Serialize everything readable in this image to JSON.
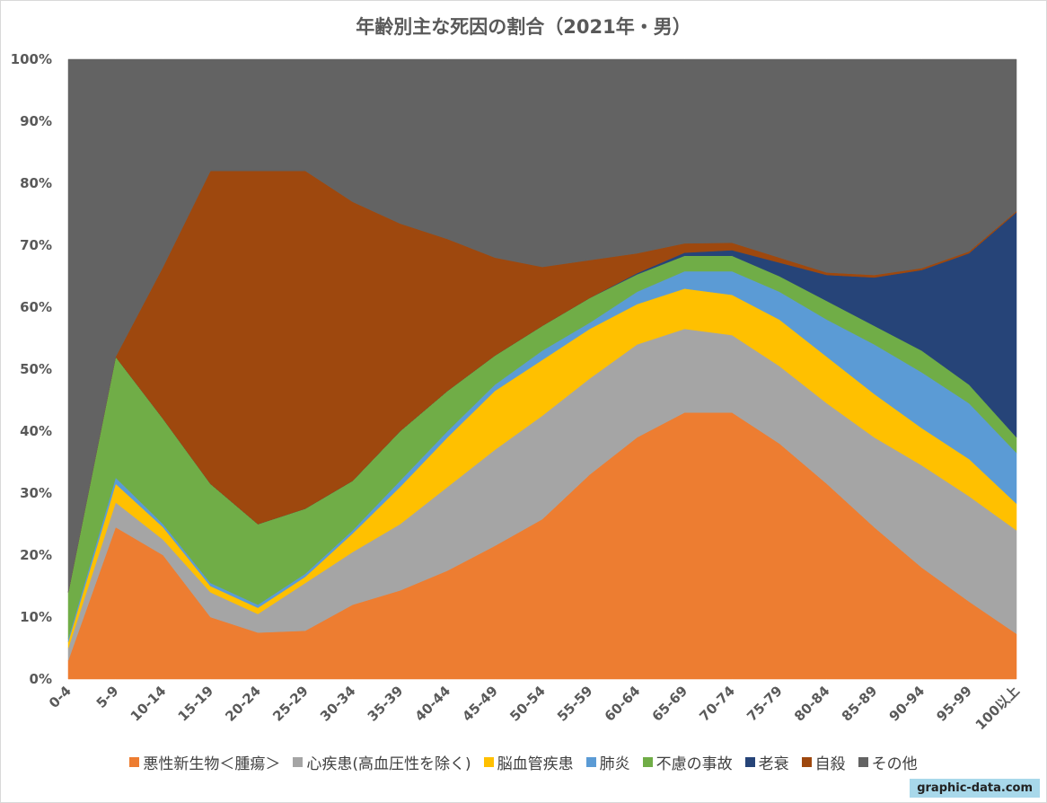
{
  "chart_data": {
    "type": "area",
    "stacked": "percent",
    "title": "年齢別主な死因の割合（2021年・男）",
    "xlabel": "",
    "ylabel": "",
    "ylim": [
      0,
      100
    ],
    "yticks": [
      "0%",
      "10%",
      "20%",
      "30%",
      "40%",
      "50%",
      "60%",
      "70%",
      "80%",
      "90%",
      "100%"
    ],
    "categories": [
      "0-4",
      "5-9",
      "10-14",
      "15-19",
      "20-24",
      "25-29",
      "30-34",
      "35-39",
      "40-44",
      "45-49",
      "50-54",
      "55-59",
      "60-64",
      "65-69",
      "70-74",
      "75-79",
      "80-84",
      "85-89",
      "90-94",
      "95-99",
      "100以上"
    ],
    "legend_position": "bottom",
    "series": [
      {
        "name": "悪性新生物＜腫瘍＞",
        "color": "#ed7d31",
        "values": [
          3,
          24.5,
          20,
          10,
          7.5,
          7.8,
          12,
          14.3,
          17.5,
          21.5,
          25.8,
          33,
          39,
          43,
          43,
          38,
          31.5,
          24.5,
          18,
          12.5,
          7.3
        ]
      },
      {
        "name": "心疾患(高血圧性を除く)",
        "color": "#a5a5a5",
        "values": [
          2,
          4,
          2.5,
          4,
          3,
          7.7,
          8.5,
          10.7,
          13.5,
          15.5,
          16.7,
          15.5,
          15,
          13.5,
          12.5,
          12.5,
          13,
          14.5,
          16.5,
          17,
          16.7
        ]
      },
      {
        "name": "脳血管疾患",
        "color": "#ffc000",
        "values": [
          1,
          3,
          2,
          1,
          1,
          1,
          3,
          6,
          8,
          9.5,
          9,
          8,
          6.5,
          6.5,
          6.5,
          7.5,
          7.5,
          7,
          6,
          6,
          4.3
        ]
      },
      {
        "name": "肺炎",
        "color": "#5b9bd5",
        "values": [
          0.5,
          1,
          0.5,
          0.5,
          0.5,
          0.5,
          0.5,
          1,
          1,
          1,
          1.5,
          1,
          2,
          2.8,
          3.8,
          4.5,
          6,
          8,
          9,
          9,
          8.2
        ]
      },
      {
        "name": "不慮の事故",
        "color": "#70ad47",
        "values": [
          7.5,
          19.5,
          17,
          16,
          13,
          10.5,
          8,
          8,
          6.5,
          4.7,
          4,
          4,
          2.8,
          2.5,
          2.5,
          2.5,
          3,
          3,
          3.5,
          3,
          2.5
        ]
      },
      {
        "name": "老衰",
        "color": "#264478",
        "values": [
          0,
          0,
          0,
          0,
          0,
          0,
          0,
          0,
          0,
          0,
          0,
          0,
          0.2,
          0.5,
          0.9,
          2.2,
          4.2,
          7.8,
          13,
          21.2,
          36.3
        ]
      },
      {
        "name": "自殺",
        "color": "#9e480e",
        "values": [
          0,
          0,
          24.5,
          50.5,
          57,
          54.5,
          45,
          33.5,
          24.5,
          15.8,
          9.5,
          6.1,
          3.2,
          1.5,
          1.2,
          0.8,
          0.4,
          0.4,
          0.3,
          0.3,
          0.2
        ]
      },
      {
        "name": "その他",
        "color": "#636363",
        "values": [
          86,
          48,
          33.5,
          18,
          18,
          18,
          23,
          26.5,
          29,
          32,
          33.5,
          32.4,
          31.3,
          29.7,
          29.6,
          32,
          34.4,
          34.8,
          33.7,
          31,
          24.5
        ]
      }
    ]
  },
  "watermark": "graphic-data.com"
}
